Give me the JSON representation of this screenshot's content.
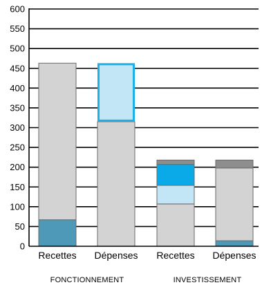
{
  "chart_data": {
    "type": "bar",
    "stacked": true,
    "ylim": [
      0,
      600
    ],
    "yticks": [
      0,
      50,
      100,
      150,
      200,
      250,
      300,
      350,
      400,
      450,
      500,
      550,
      600
    ],
    "grid": "horizontal",
    "categories": [
      "Recettes",
      "Dépenses",
      "Recettes",
      "Dépenses"
    ],
    "groups": [
      {
        "label": "FONCTIONNEMENT",
        "categories": [
          0,
          1
        ]
      },
      {
        "label": "INVESTISSEMENT",
        "categories": [
          2,
          3
        ]
      }
    ],
    "bars": [
      {
        "category": "Recettes",
        "group": "FONCTIONNEMENT",
        "segments": [
          {
            "value": 67,
            "color": "#4f99b8"
          },
          {
            "value": 396,
            "color": "#d3d3d3"
          }
        ]
      },
      {
        "category": "Dépenses",
        "group": "FONCTIONNEMENT",
        "segments": [
          {
            "value": 315,
            "color": "#d3d3d3"
          },
          {
            "value": 148,
            "color": "#c3e6f7",
            "outline": "#1ab0e8"
          }
        ]
      },
      {
        "category": "Recettes",
        "group": "INVESTISSEMENT",
        "segments": [
          {
            "value": 107,
            "color": "#d3d3d3"
          },
          {
            "value": 47,
            "color": "#c3e6f7"
          },
          {
            "value": 53,
            "color": "#0aaae8"
          },
          {
            "value": 11,
            "color": "#8e8e8e"
          }
        ]
      },
      {
        "category": "Dépenses",
        "group": "INVESTISSEMENT",
        "segments": [
          {
            "value": 14,
            "color": "#4f99b8"
          },
          {
            "value": 184,
            "color": "#d3d3d3"
          },
          {
            "value": 20,
            "color": "#8e8e8e"
          }
        ]
      }
    ]
  }
}
